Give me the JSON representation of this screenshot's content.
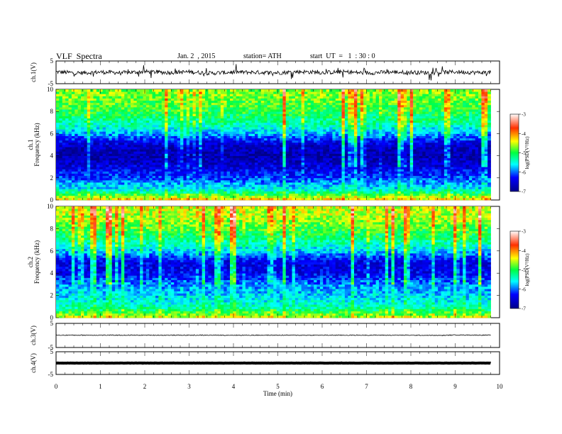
{
  "header": {
    "title": "VLF  Spectra",
    "date": "Jan. 2  , 2015",
    "station": "station= ATH",
    "start_ut": "start  UT  =   1  : 30 : 0"
  },
  "chart_data": [
    {
      "type": "line",
      "panel": "ch1-waveform",
      "ylabel": "ch.1(V)",
      "ylim": [
        -5,
        5
      ],
      "yticks": [
        "5",
        "-5"
      ],
      "x": [
        0,
        0.5,
        1,
        1.5,
        2,
        2.5,
        3,
        3.5,
        4,
        4.5,
        5,
        5.5,
        6,
        6.5,
        7,
        7.5,
        8,
        8.5,
        9,
        9.5,
        9.8
      ],
      "series": [
        {
          "values": [
            0.2,
            -0.3,
            0.1,
            -0.2,
            0.3,
            -0.1,
            0.2,
            -0.4,
            0.1,
            0.0,
            -0.2,
            0.3,
            -0.1,
            0.2,
            -0.3,
            0.1,
            0.0,
            -0.2,
            0.2,
            -0.1,
            0.0
          ]
        }
      ]
    },
    {
      "type": "heatmap",
      "panel": "ch1-spectrogram",
      "ylabel": "ch.1\nFrequency  (kHz)",
      "ylim": [
        0,
        10
      ],
      "yticks": [
        "0",
        "2",
        "4",
        "6",
        "8",
        "10"
      ],
      "colorbar": {
        "label": "log(PSD(V²/Hz)",
        "range": [
          -7,
          -3
        ],
        "ticks": [
          "-3",
          "-4",
          "-5",
          "-6",
          "-7"
        ]
      },
      "freq_profile_khz": [
        0,
        1,
        2,
        3,
        4,
        5,
        6,
        7,
        8,
        9,
        10
      ],
      "log_psd_profile": [
        -4.2,
        -5.6,
        -6.1,
        -6.5,
        -6.8,
        -6.6,
        -5.8,
        -5.3,
        -5.0,
        -4.8,
        -4.7
      ]
    },
    {
      "type": "heatmap",
      "panel": "ch2-spectrogram",
      "ylabel": "ch.2\nFrequency  (kHz)",
      "ylim": [
        0,
        10
      ],
      "yticks": [
        "0",
        "2",
        "4",
        "6",
        "8",
        "10"
      ],
      "colorbar": {
        "label": "log(PSD(V²/Hz)",
        "range": [
          -7,
          -3
        ],
        "ticks": [
          "-3",
          "-4",
          "-5",
          "-6",
          "-7"
        ]
      },
      "freq_profile_khz": [
        0,
        1,
        2,
        3,
        4,
        5,
        6,
        7,
        8,
        9,
        10
      ],
      "log_psd_profile": [
        -4.5,
        -5.4,
        -5.7,
        -5.9,
        -6.4,
        -6.5,
        -5.7,
        -5.2,
        -4.9,
        -4.6,
        -4.5
      ]
    },
    {
      "type": "line",
      "panel": "ch3-waveform",
      "ylabel": "ch.3(V)",
      "ylim": [
        -5,
        5
      ],
      "yticks": [
        "5",
        "-5"
      ],
      "x": [
        0,
        1,
        2,
        3,
        4,
        5,
        6,
        7,
        8,
        8.7,
        9,
        9.8
      ],
      "series": [
        {
          "values": [
            0.1,
            0.1,
            0.1,
            0.1,
            0.1,
            0.1,
            0.1,
            0.1,
            0.1,
            0.0,
            0.2,
            0.1
          ]
        }
      ]
    },
    {
      "type": "line",
      "panel": "ch4-waveform",
      "ylabel": "ch.4(V)",
      "ylim": [
        -5,
        5
      ],
      "yticks": [
        "5",
        "-5"
      ],
      "x": [
        0,
        2,
        4,
        6,
        8,
        9.8
      ],
      "series": [
        {
          "values": [
            0,
            0,
            0,
            0,
            0,
            0
          ]
        }
      ]
    }
  ],
  "xaxis": {
    "label": "Time  (min)",
    "xlim": [
      0,
      10
    ],
    "ticks": [
      "0",
      "1",
      "2",
      "3",
      "4",
      "5",
      "6",
      "7",
      "8",
      "9",
      "10"
    ]
  }
}
